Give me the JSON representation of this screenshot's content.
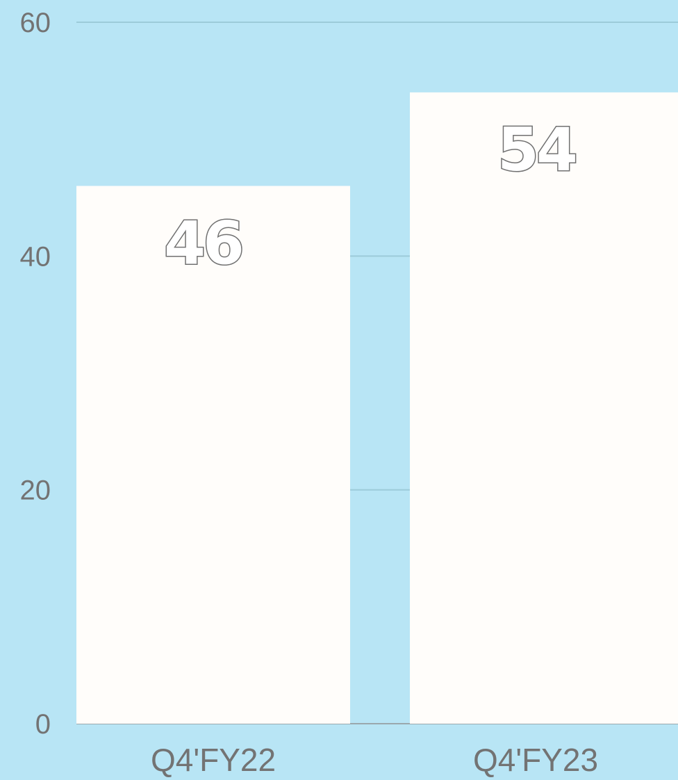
{
  "chart_data": {
    "type": "bar",
    "title": "",
    "xlabel": "",
    "ylabel": "",
    "categories": [
      "Q4'FY22",
      "Q4'FY23"
    ],
    "values": [
      46,
      54
    ],
    "data_labels": [
      "46",
      "54"
    ],
    "ylim": [
      0,
      60
    ],
    "yticks": [
      0,
      20,
      40,
      60
    ],
    "ytick_labels": [
      "0",
      "20",
      "40",
      "60"
    ],
    "grid": true,
    "legend": "none",
    "colors": {
      "background": "#b8e5f5",
      "bar": "#fffdfa",
      "gridline": "#9ccbd9",
      "text": "#737373",
      "label_outline": "#707070"
    }
  }
}
